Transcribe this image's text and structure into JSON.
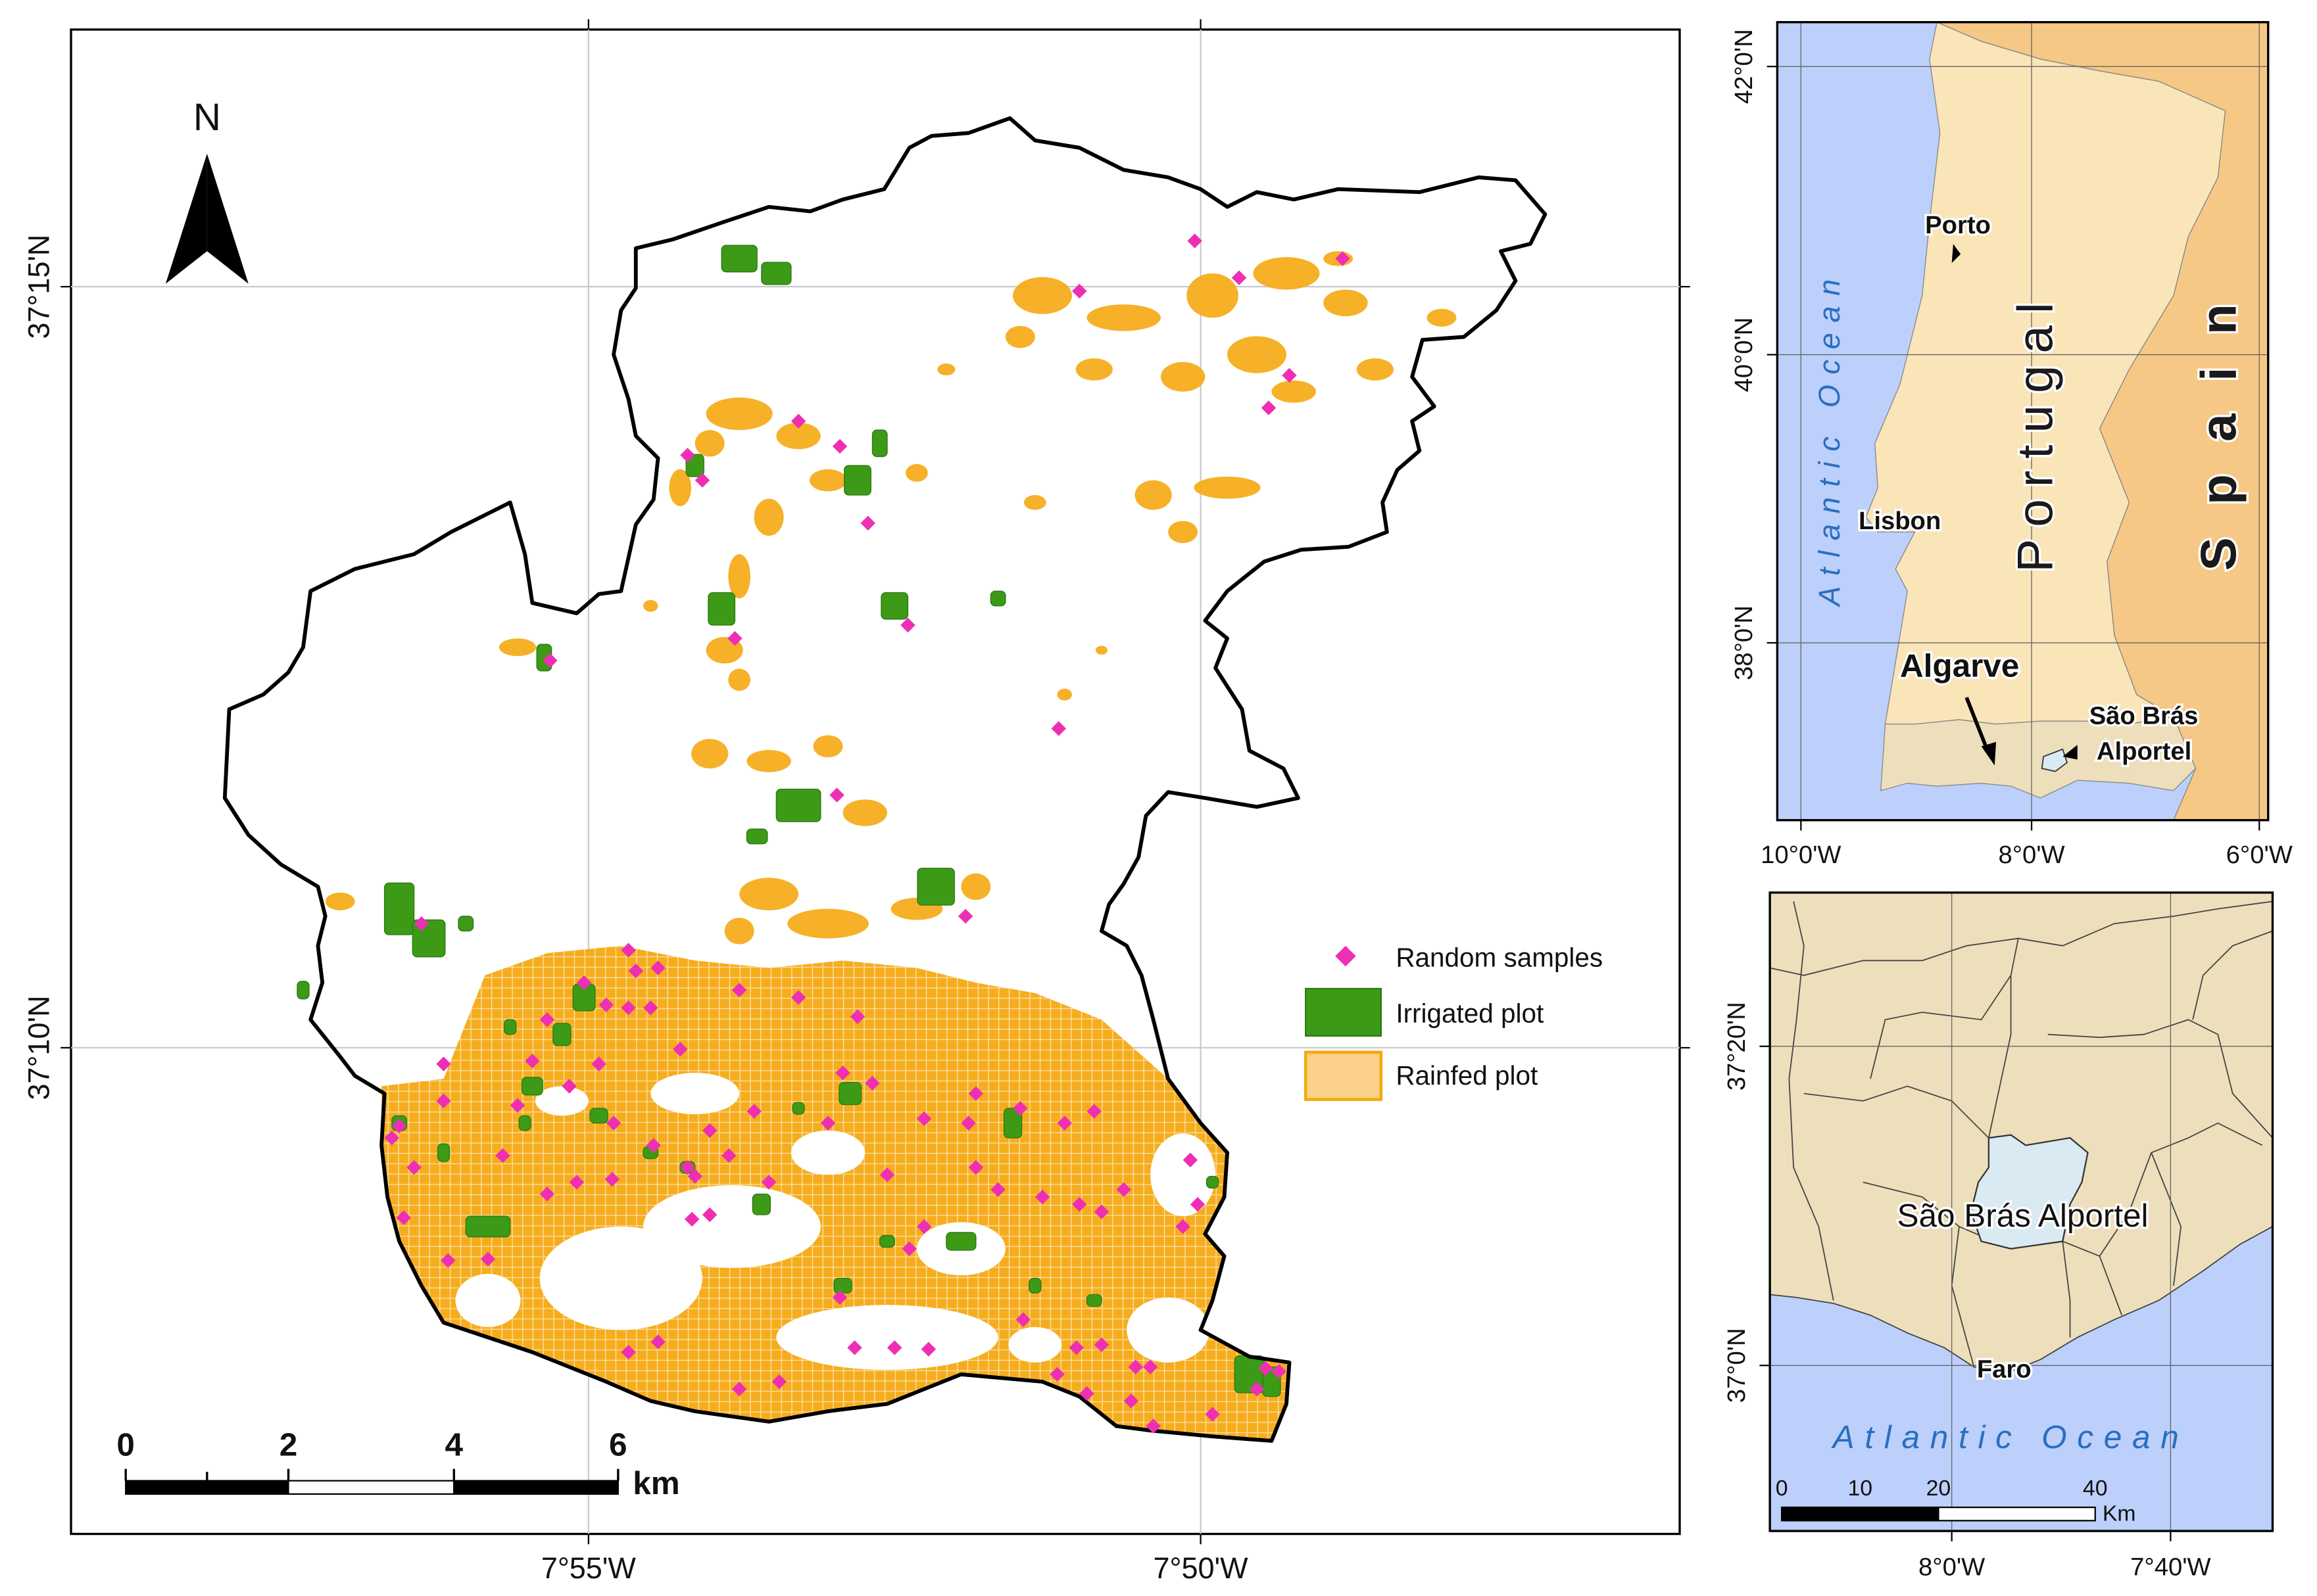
{
  "main_map": {
    "north_label": "N",
    "lon_labels": [
      "7°55'W",
      "7°50'W"
    ],
    "lat_labels": [
      "37°15'N",
      "37°10'N"
    ],
    "scale_bar": {
      "ticks": [
        "0",
        "2",
        "4",
        "6"
      ],
      "unit": "km"
    },
    "legend": {
      "items": [
        {
          "label": "Random samples",
          "color": "#ee2fb4",
          "symbol": "diamond"
        },
        {
          "label": "Irrigated plot",
          "color": "#3c9a17",
          "symbol": "rect"
        },
        {
          "label": "Rainfed plot",
          "color": "#fbd088",
          "border": "#f4a90a",
          "symbol": "rect"
        }
      ]
    },
    "colors": {
      "rainfed": "#f6ad1d",
      "irrigated": "#3c9a17",
      "sample": "#ee2fb4",
      "boundary": "#000000"
    }
  },
  "inset_portugal": {
    "lat_labels": [
      "42°0'N",
      "40°0'N",
      "38°0'N"
    ],
    "lon_labels": [
      "10°0'W",
      "8°0'W",
      "6°0'W"
    ],
    "ocean_label": "Atlantic Ocean",
    "country_label": "Portugal",
    "neighbor_label": "Spain",
    "cities": [
      "Porto",
      "Lisbon"
    ],
    "region_label": "Algarve",
    "study_area_label_line1": "São Brás",
    "study_area_label_line2": "Alportel",
    "colors": {
      "ocean": "#bcd0fb",
      "portugal": "#fae5b9",
      "spain": "#f6c885",
      "algarve": "#eddfbc",
      "study_area": "#d9eaf3"
    }
  },
  "inset_algarve": {
    "lat_labels": [
      "37°20'N",
      "37°0'N"
    ],
    "lon_labels": [
      "8°0'W",
      "7°40'W"
    ],
    "study_area_label": "São Brás Alportel",
    "city_label": "Faro",
    "ocean_label": "Atlantic Ocean",
    "scale_bar": {
      "ticks": [
        "0",
        "10",
        "20",
        "40"
      ],
      "unit": "Km"
    },
    "colors": {
      "ocean": "#bcd0fb",
      "land": "#eddfbc",
      "study_area": "#d9eaf3"
    }
  }
}
